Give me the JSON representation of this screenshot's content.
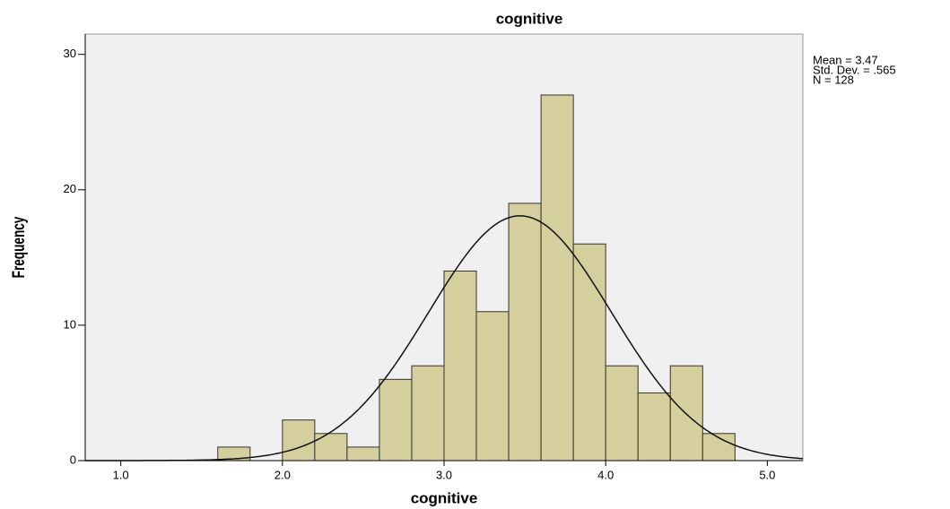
{
  "chart_data": {
    "type": "histogram",
    "title": "cognitive",
    "x_label": "cognitive",
    "y_label": "Frequency",
    "bins": [
      1.6,
      1.8,
      2.0,
      2.2,
      2.4,
      2.6,
      2.8,
      3.0,
      3.2,
      3.4,
      3.6,
      3.8,
      4.0,
      4.2,
      4.4,
      4.6,
      4.8
    ],
    "values": [
      1,
      0,
      3,
      2,
      1,
      6,
      7,
      14,
      11,
      19,
      27,
      16,
      7,
      5,
      7,
      2
    ],
    "color": "#d4cf9c",
    "xlim": [
      0.78,
      5.22
    ],
    "xticks": [
      {
        "value": 1,
        "label": "1.0"
      },
      {
        "value": 2,
        "label": "2.0"
      },
      {
        "value": 3,
        "label": "3.0"
      },
      {
        "value": 4,
        "label": "4.0"
      },
      {
        "value": 5,
        "label": "5.0"
      }
    ],
    "ylim": [
      0,
      31.5
    ],
    "yticks": [
      0,
      10,
      20,
      30
    ],
    "stats": [
      {
        "value": 3.47,
        "label": "Mean = 3.47"
      },
      {
        "value": 0.565,
        "label": "Std. Dev. = .565"
      },
      {
        "value": 128,
        "label": "N = 128"
      }
    ],
    "normal_curve": true
  }
}
